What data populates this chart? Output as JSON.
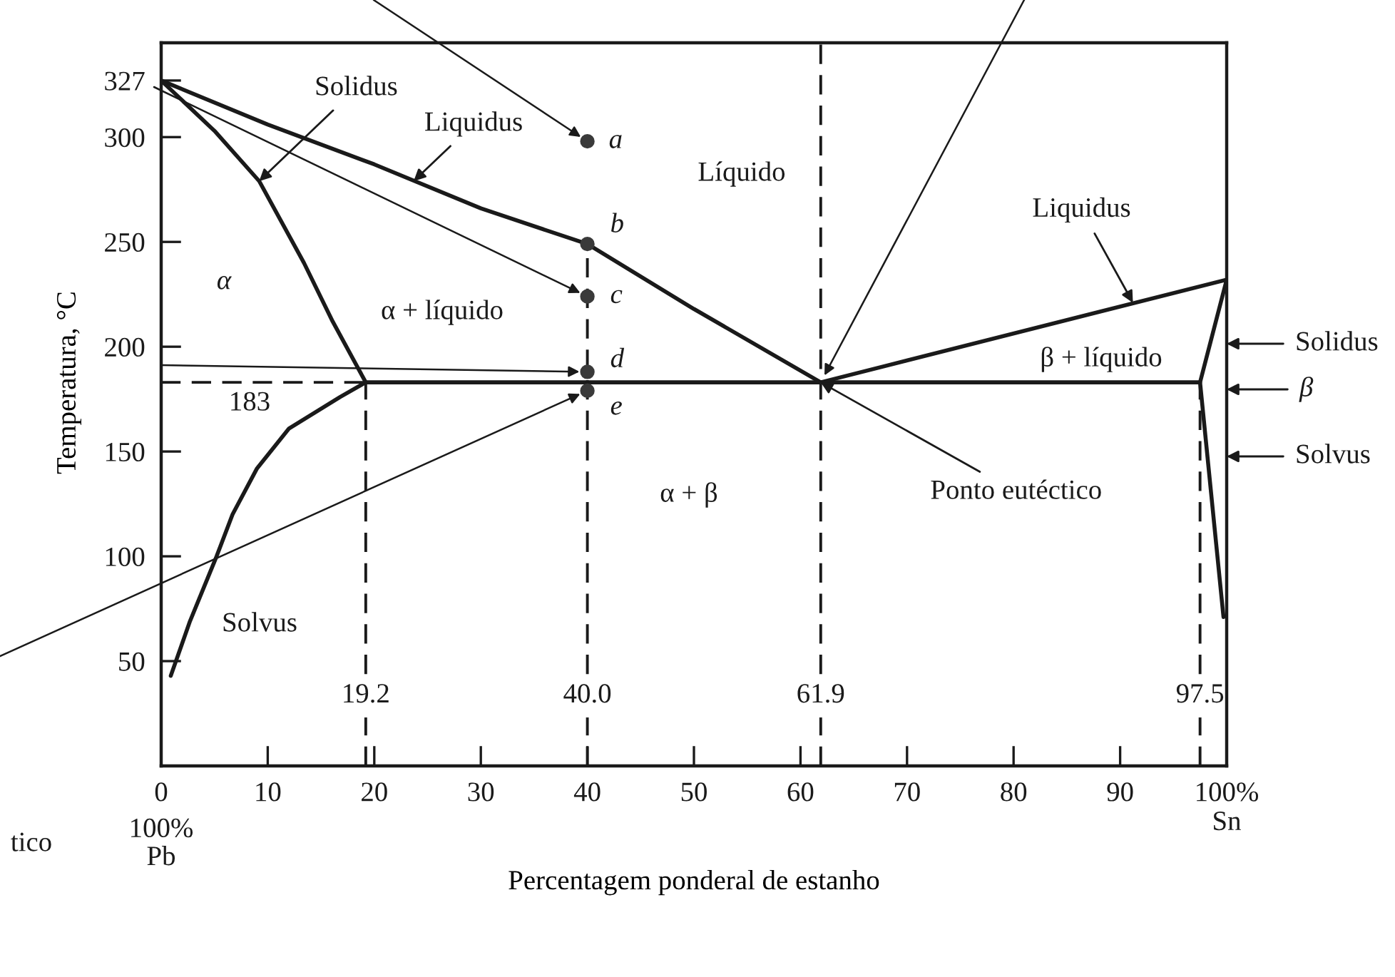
{
  "chart_data": {
    "type": "line",
    "xlabel": "Percentagem ponderal de estanho",
    "ylabel": "Temperatura, °C",
    "xlim": [
      0,
      100
    ],
    "ylim": [
      0,
      345
    ],
    "xticks": [
      0,
      10,
      20,
      30,
      40,
      50,
      60,
      70,
      80,
      90,
      {
        "value": 100,
        "label": "100%\nSn"
      }
    ],
    "yticks": [
      50,
      100,
      150,
      200,
      250,
      300,
      327
    ],
    "series": [
      {
        "color": "#1a1a1a",
        "line_style": "solid",
        "x": [
          0,
          10,
          20,
          30,
          40,
          50,
          61.9
        ],
        "values": [
          327,
          306,
          287,
          266,
          249,
          218,
          183
        ]
      },
      {
        "color": "#1a1a1a",
        "line_style": "solid",
        "x": [
          0,
          5,
          9.2,
          13.4,
          16.1,
          19.2,
          16.8,
          12,
          9,
          6.7,
          5.2,
          2.7,
          0.9
        ],
        "values": [
          327,
          303,
          279,
          240,
          212,
          183,
          176,
          161,
          142,
          120,
          100,
          69,
          43
        ]
      },
      {
        "color": "#1a1a1a",
        "line_style": "solid",
        "x": [
          19.2,
          97.5
        ],
        "values": [
          183,
          183
        ]
      },
      {
        "color": "#1a1a1a",
        "line_style": "dashed",
        "x": [
          0,
          19.2
        ],
        "values": [
          183,
          183
        ]
      },
      {
        "color": "#1a1a1a",
        "line_style": "solid",
        "x": [
          61.9,
          100,
          97.5,
          99.7
        ],
        "values": [
          183,
          232,
          183,
          71
        ]
      },
      {
        "type": "scatter",
        "color": "#3a3a3a",
        "marker": "circle",
        "x": [
          40,
          40,
          40,
          40,
          40
        ],
        "values": [
          298,
          249,
          224,
          188,
          179
        ]
      }
    ],
    "ref_lines": [
      {
        "axis": "x",
        "value": 19.2,
        "label": "19.2",
        "line_style": "dashed",
        "color": "#1a1a1a"
      },
      {
        "axis": "x",
        "value": 40,
        "label": "40.0",
        "line_style": "dashed",
        "color": "#1a1a1a"
      },
      {
        "axis": "x",
        "value": 61.9,
        "label": "61.9",
        "line_style": "dashed",
        "color": "#1a1a1a"
      },
      {
        "axis": "x",
        "value": 97.5,
        "label": "97.5",
        "line_style": "dashed",
        "color": "#1a1a1a"
      }
    ],
    "annotations": [
      {
        "text": "Solidus",
        "x": 9.2,
        "y": 279
      },
      {
        "text": "Liquidus",
        "x": 23.7,
        "y": 279
      },
      "Líquido",
      {
        "text": "Liquidus",
        "x": 91.2,
        "y": 221
      },
      "α",
      "α + líquido",
      "β + líquido",
      "Solidus",
      "β",
      "Solvus",
      "α + β",
      {
        "text": "Ponto eutéctico",
        "x": 61.9,
        "y": 183
      },
      {
        "text": "183",
        "x": 8.3,
        "y": 183
      },
      "Solvus",
      {
        "text": "a",
        "x": 40,
        "y": 298
      },
      {
        "text": "b",
        "x": 40,
        "y": 249
      },
      {
        "text": "c",
        "x": 40,
        "y": 224
      },
      {
        "text": "d",
        "x": 40,
        "y": 188
      },
      {
        "text": "e",
        "x": 40,
        "y": 179
      },
      "100%\nPb",
      "tico"
    ]
  }
}
